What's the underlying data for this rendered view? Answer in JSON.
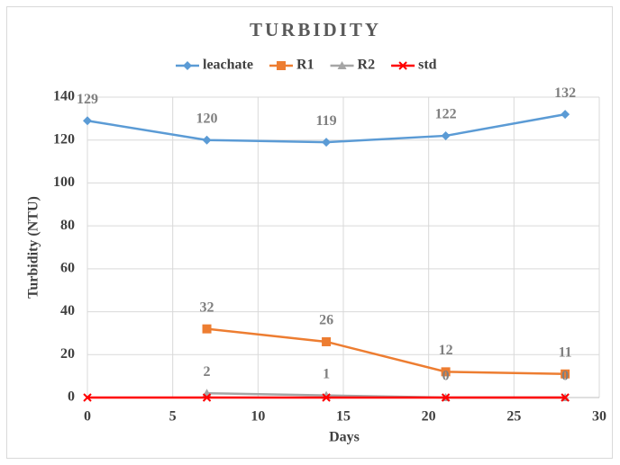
{
  "chart_data": {
    "type": "line",
    "title": "TURBIDITY",
    "x_label": "Days",
    "y_label": "Turbidity (NTU)",
    "x": [
      0,
      7,
      14,
      21,
      28
    ],
    "series": [
      {
        "name": "leachate",
        "color": "#5b9bd5",
        "marker": "diamond",
        "data_labels": true,
        "values": [
          129,
          120,
          119,
          122,
          132
        ]
      },
      {
        "name": "R1",
        "color": "#ed7d31",
        "marker": "square",
        "data_labels": true,
        "values": [
          null,
          32,
          26,
          12,
          11
        ]
      },
      {
        "name": "R2",
        "color": "#a5a5a5",
        "marker": "triangle",
        "data_labels": true,
        "values": [
          null,
          2,
          1,
          0,
          0
        ]
      },
      {
        "name": "std",
        "color": "#ff0000",
        "marker": "x",
        "data_labels": false,
        "values": [
          0,
          0,
          0,
          0,
          0
        ]
      }
    ],
    "xlim": [
      0,
      30
    ],
    "xticks": [
      0,
      5,
      10,
      15,
      20,
      25,
      30
    ],
    "ylim": [
      0,
      140
    ],
    "yticks": [
      0,
      20,
      40,
      60,
      80,
      100,
      120,
      140
    ],
    "grid": true,
    "legend": "top"
  }
}
